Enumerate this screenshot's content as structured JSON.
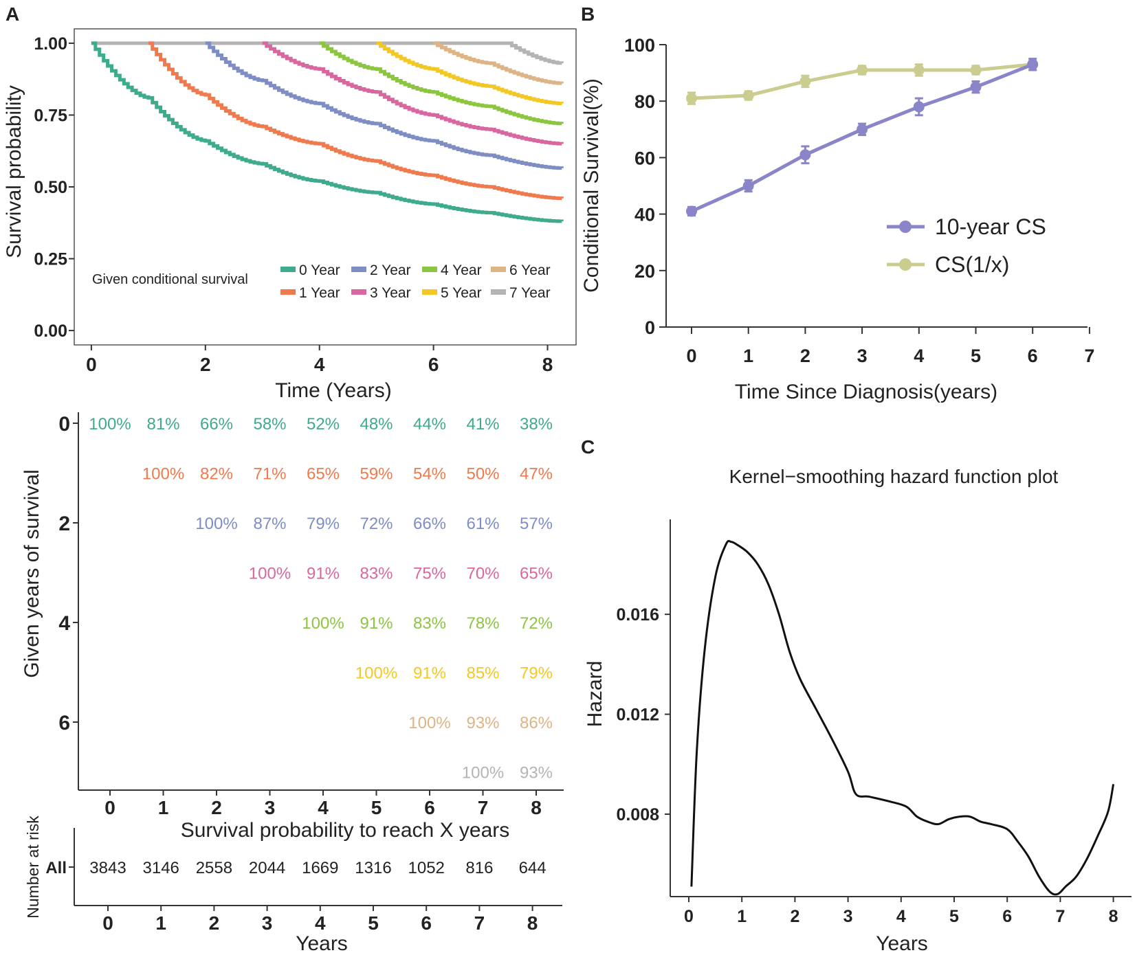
{
  "colors": {
    "g0": "#3dab8c",
    "g1": "#ee7a4d",
    "g2": "#7e8dc4",
    "g3": "#d9679f",
    "g4": "#8cc53f",
    "g5": "#f3c825",
    "g6": "#dcb486",
    "g7": "#b4b4b4",
    "cs10": "#8a85c8",
    "cs1x": "#cbcc8f",
    "black": "#111111"
  },
  "panelA": {
    "label": "A",
    "km": {
      "type": "line",
      "ylabel": "Survival probability",
      "xlabel": "Time (Years)",
      "xlim": [
        -0.3,
        8.5
      ],
      "ylim": [
        -0.05,
        1.05
      ],
      "xticks": [
        "0",
        "2",
        "4",
        "6",
        "8"
      ],
      "xtick_values": [
        0,
        2,
        4,
        6,
        8
      ],
      "yticks": [
        "0.00",
        "0.25",
        "0.50",
        "0.75",
        "1.00"
      ],
      "ytick_values": [
        0,
        0.25,
        0.5,
        0.75,
        1.0
      ],
      "legend_title": "Given conditional survival",
      "legend": [
        "0 Year",
        "1 Year",
        "2 Year",
        "3 Year",
        "4 Year",
        "5 Year",
        "6 Year",
        "7 Year"
      ],
      "series": [
        {
          "name": "0 Year",
          "start": 0,
          "x": [
            0,
            1,
            2,
            3,
            4,
            5,
            6,
            7,
            8.25
          ],
          "y": [
            1.0,
            0.81,
            0.66,
            0.58,
            0.52,
            0.48,
            0.44,
            0.41,
            0.38
          ]
        },
        {
          "name": "1 Year",
          "start": 1,
          "x": [
            1,
            2,
            3,
            4,
            5,
            6,
            7,
            8.25
          ],
          "y": [
            1.0,
            0.82,
            0.71,
            0.65,
            0.59,
            0.54,
            0.5,
            0.46
          ]
        },
        {
          "name": "2 Year",
          "start": 2,
          "x": [
            2,
            3,
            4,
            5,
            6,
            7,
            8.25
          ],
          "y": [
            1.0,
            0.87,
            0.79,
            0.72,
            0.66,
            0.61,
            0.565
          ]
        },
        {
          "name": "3 Year",
          "start": 3,
          "x": [
            3,
            4,
            5,
            6,
            7,
            8.25
          ],
          "y": [
            1.0,
            0.91,
            0.83,
            0.75,
            0.7,
            0.65
          ]
        },
        {
          "name": "4 Year",
          "start": 4,
          "x": [
            4,
            5,
            6,
            7,
            8.25
          ],
          "y": [
            1.0,
            0.91,
            0.83,
            0.78,
            0.72
          ]
        },
        {
          "name": "5 Year",
          "start": 5,
          "x": [
            5,
            6,
            7,
            8.25
          ],
          "y": [
            1.0,
            0.91,
            0.85,
            0.79
          ]
        },
        {
          "name": "6 Year",
          "start": 6,
          "x": [
            6,
            7,
            8.25
          ],
          "y": [
            1.0,
            0.93,
            0.86
          ]
        },
        {
          "name": "7 Year",
          "start": 7,
          "x": [
            0,
            7,
            7.3,
            8.25
          ],
          "y": [
            1.0,
            1.0,
            1.0,
            0.93
          ]
        }
      ]
    },
    "table": {
      "type": "table",
      "ylabel": "Given years of survival",
      "xlabel": "Survival probability to reach X years",
      "yticks": [
        "0",
        "2",
        "4",
        "6"
      ],
      "ytick_values": [
        0,
        2,
        4,
        6
      ],
      "xticks": [
        "0",
        "1",
        "2",
        "3",
        "4",
        "5",
        "6",
        "7",
        "8"
      ],
      "rows": [
        {
          "given": 0,
          "cells": [
            "100%",
            "81%",
            "66%",
            "58%",
            "52%",
            "48%",
            "44%",
            "41%",
            "38%"
          ]
        },
        {
          "given": 1,
          "cells": [
            "100%",
            "82%",
            "71%",
            "65%",
            "59%",
            "54%",
            "50%",
            "47%"
          ]
        },
        {
          "given": 2,
          "cells": [
            "100%",
            "87%",
            "79%",
            "72%",
            "66%",
            "61%",
            "57%"
          ]
        },
        {
          "given": 3,
          "cells": [
            "100%",
            "91%",
            "83%",
            "75%",
            "70%",
            "65%"
          ]
        },
        {
          "given": 4,
          "cells": [
            "100%",
            "91%",
            "83%",
            "78%",
            "72%"
          ]
        },
        {
          "given": 5,
          "cells": [
            "100%",
            "91%",
            "85%",
            "79%"
          ]
        },
        {
          "given": 6,
          "cells": [
            "100%",
            "93%",
            "86%"
          ]
        },
        {
          "given": 7,
          "cells": [
            "100%",
            "93%"
          ]
        }
      ]
    },
    "risk": {
      "type": "table",
      "ylabel": "Number at risk",
      "row_label": "All",
      "values": [
        "3843",
        "3146",
        "2558",
        "2044",
        "1669",
        "1316",
        "1052",
        "816",
        "644"
      ],
      "xticks": [
        "0",
        "1",
        "2",
        "3",
        "4",
        "5",
        "6",
        "7",
        "8"
      ],
      "xlabel": "Years"
    }
  },
  "panelB": {
    "label": "B",
    "chart_data": {
      "type": "line",
      "ylabel": "Conditional Survival(%)",
      "xlabel": "Time Since Diagnosis(years)",
      "xlim": [
        -0.5,
        7
      ],
      "ylim": [
        0,
        100
      ],
      "xticks": [
        "0",
        "1",
        "2",
        "3",
        "4",
        "5",
        "6",
        "7"
      ],
      "yticks": [
        "0",
        "20",
        "40",
        "60",
        "80",
        "100"
      ],
      "x": [
        0,
        1,
        2,
        3,
        4,
        5,
        6
      ],
      "series": [
        {
          "name": "10-year CS",
          "values": [
            41,
            50,
            61,
            70,
            78,
            85,
            93
          ],
          "err": [
            1.5,
            2,
            3,
            2,
            3,
            2,
            2
          ]
        },
        {
          "name": "CS(1/x)",
          "values": [
            81,
            82,
            87,
            91,
            91,
            91,
            93
          ],
          "err": [
            2,
            1.5,
            2,
            1.5,
            2,
            1.5,
            1.5
          ]
        }
      ],
      "legend": [
        "10-year CS",
        "CS(1/x)"
      ]
    }
  },
  "panelC": {
    "label": "C",
    "chart_data": {
      "type": "line",
      "title": "Kernel−smoothing hazard function plot",
      "ylabel": "Hazard",
      "xlabel": "Years",
      "xlim": [
        -0.3,
        8.4
      ],
      "ylim": [
        0.0047,
        0.0198
      ],
      "xticks": [
        "0",
        "1",
        "2",
        "3",
        "4",
        "5",
        "6",
        "7",
        "8"
      ],
      "yticks": [
        "0.008",
        "0.012",
        "0.016"
      ],
      "ytick_values": [
        0.008,
        0.012,
        0.016
      ],
      "x": [
        0.05,
        0.15,
        0.3,
        0.5,
        0.7,
        0.8,
        0.9,
        1.1,
        1.3,
        1.5,
        1.7,
        1.9,
        2.1,
        2.4,
        2.7,
        3.0,
        3.15,
        3.4,
        3.8,
        4.1,
        4.3,
        4.5,
        4.7,
        4.9,
        5.1,
        5.3,
        5.5,
        5.7,
        6.0,
        6.2,
        6.4,
        6.6,
        6.8,
        6.95,
        7.1,
        7.3,
        7.5,
        7.7,
        7.9,
        8.0
      ],
      "y": [
        0.0051,
        0.0105,
        0.0146,
        0.0175,
        0.0188,
        0.0189,
        0.0188,
        0.0185,
        0.018,
        0.0172,
        0.016,
        0.0145,
        0.0134,
        0.0122,
        0.011,
        0.0097,
        0.0088,
        0.0087,
        0.0085,
        0.0083,
        0.0079,
        0.0077,
        0.0076,
        0.0078,
        0.0079,
        0.0079,
        0.0077,
        0.0076,
        0.0074,
        0.0069,
        0.0063,
        0.0055,
        0.0049,
        0.0048,
        0.0051,
        0.0055,
        0.0062,
        0.0071,
        0.0081,
        0.0092
      ]
    }
  }
}
